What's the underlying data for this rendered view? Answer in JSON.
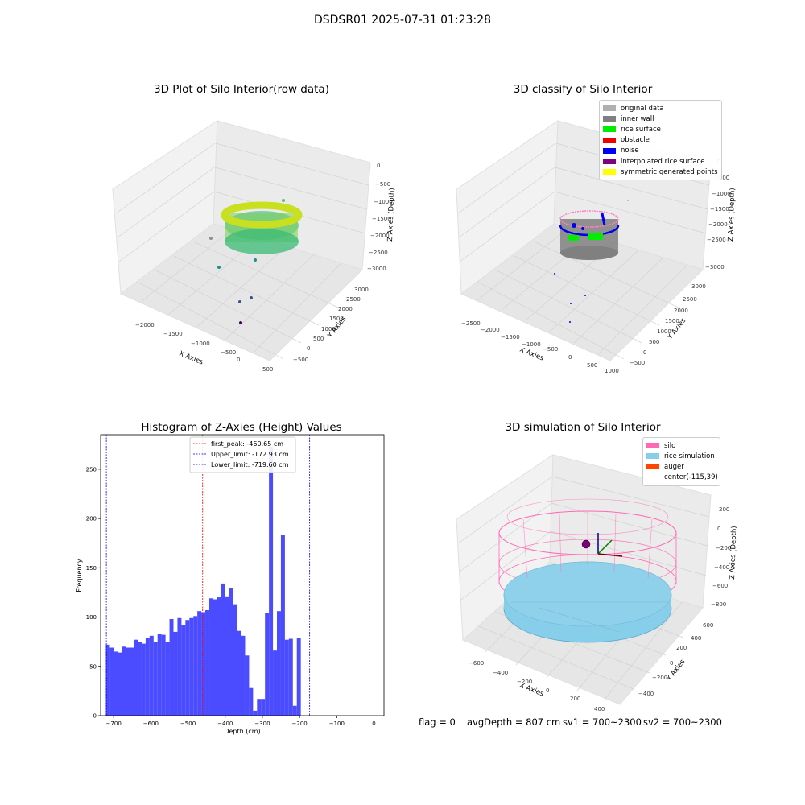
{
  "figure": {
    "suptitle": "DSDSR01 2025-07-31 01:23:28",
    "footer": {
      "flag": "flag = 0",
      "avg_depth": "avgDepth = 807 cm",
      "sv1": "sv1 = 700~2300",
      "sv2": "sv2 = 700~2300"
    }
  },
  "panels": {
    "raw": {
      "title": "3D Plot of Silo Interior(row data)",
      "xlabel": "X Axies",
      "ylabel": "Y Axies",
      "zlabel": "Z Axies (Depth)",
      "xticks": [
        "−2000",
        "−1500",
        "−1000",
        "−500",
        "0",
        "500"
      ],
      "yticks": [
        "−500",
        "0",
        "500",
        "1000",
        "1500",
        "2000",
        "2500",
        "3000"
      ],
      "zticks": [
        "0",
        "−500",
        "−1000",
        "−1500",
        "−2000",
        "−2500",
        "−3000"
      ]
    },
    "classify": {
      "title": "3D classify of Silo Interior",
      "xlabel": "X Axies",
      "ylabel": "Y Axies",
      "zlabel": "Z Axies (Depth)",
      "xticks": [
        "−2500",
        "−2000",
        "−1500",
        "−1000",
        "−500",
        "0",
        "500",
        "1000"
      ],
      "yticks": [
        "−500",
        "0",
        "500",
        "1000",
        "1500",
        "2000",
        "2500",
        "3000"
      ],
      "zticks": [
        "0",
        "−500",
        "−1000",
        "−1500",
        "−2000",
        "−2500",
        "−3000"
      ],
      "legend": [
        {
          "label": "original data",
          "color": "#b0b0b0"
        },
        {
          "label": "inner wall",
          "color": "#808080"
        },
        {
          "label": "rice surface",
          "color": "#00ee00"
        },
        {
          "label": "obstacle",
          "color": "#ee0000"
        },
        {
          "label": "noise",
          "color": "#0000ee"
        },
        {
          "label": "interpolated rice surface",
          "color": "#800080"
        },
        {
          "label": "symmetric generated points",
          "color": "#ffff00"
        }
      ]
    },
    "simulation": {
      "title": "3D simulation of Silo Interior",
      "xlabel": "X Axies",
      "ylabel": "Y Axies",
      "zlabel": "Z Axies (Depth)",
      "xticks": [
        "−600",
        "−400",
        "−200",
        "0",
        "200",
        "400"
      ],
      "yticks": [
        "−400",
        "−200",
        "0",
        "200",
        "400",
        "600"
      ],
      "zticks": [
        "200",
        "0",
        "−200",
        "−400",
        "−600",
        "−800"
      ],
      "legend": [
        {
          "label": "silo",
          "color": "#ff69b4"
        },
        {
          "label": "rice simulation",
          "color": "#87ceeb"
        },
        {
          "label": "auger",
          "color": "#ff4500"
        },
        {
          "label": "center(-115,39)",
          "color": null
        }
      ]
    }
  },
  "chart_data": [
    {
      "type": "scatter",
      "title": "3D Plot of Silo Interior(row data)",
      "xlabel": "X Axies",
      "ylabel": "Y Axies",
      "zlabel": "Z Axies (Depth)",
      "xlim": [
        -2200,
        600
      ],
      "ylim": [
        -600,
        3200
      ],
      "zlim": [
        -3200,
        100
      ],
      "colormap": "viridis"
    },
    {
      "type": "scatter",
      "title": "3D classify of Silo Interior",
      "xlabel": "X Axies",
      "ylabel": "Y Axies",
      "zlabel": "Z Axies (Depth)",
      "xlim": [
        -2700,
        1100
      ],
      "ylim": [
        -600,
        3200
      ],
      "zlim": [
        -3200,
        100
      ],
      "series": [
        {
          "name": "original data",
          "color": "#b0b0b0"
        },
        {
          "name": "inner wall",
          "color": "#808080"
        },
        {
          "name": "rice surface",
          "color": "#00ee00"
        },
        {
          "name": "obstacle",
          "color": "#ee0000"
        },
        {
          "name": "noise",
          "color": "#0000ee"
        },
        {
          "name": "interpolated rice surface",
          "color": "#800080"
        },
        {
          "name": "symmetric generated points",
          "color": "#ffff00"
        }
      ]
    },
    {
      "type": "bar",
      "title": "Histogram of Z-Axies (Height) Values",
      "xlabel": "Depth (cm)",
      "ylabel": "Frequency",
      "xlim": [
        -735,
        27
      ],
      "ylim": [
        0,
        285
      ],
      "xticks": [
        -700,
        -600,
        -500,
        -400,
        -300,
        -200,
        -100,
        0
      ],
      "xtick_labels": [
        "−700",
        "−600",
        "−500",
        "−400",
        "−300",
        "−200",
        "−100",
        "0"
      ],
      "yticks": [
        0,
        50,
        100,
        150,
        200,
        250
      ],
      "bar_color": "#4b4bff",
      "bin_start": -721,
      "bin_width": 10.7,
      "values": [
        72,
        69,
        65,
        64,
        70,
        69,
        69,
        77,
        75,
        73,
        79,
        81,
        75,
        83,
        82,
        75,
        98,
        85,
        99,
        92,
        97,
        99,
        101,
        106,
        105,
        107,
        119,
        118,
        120,
        134,
        121,
        129,
        113,
        86,
        81,
        61,
        28,
        5,
        17,
        17,
        104,
        273,
        66,
        106,
        183,
        77,
        78,
        10,
        79
      ],
      "vlines": [
        {
          "x": -460.65,
          "label": "first_peak: -460.65 cm",
          "color": "#ff0000"
        },
        {
          "x": -172.93,
          "label": "Upper_limit: -172.93 cm",
          "color": "#0000ff"
        },
        {
          "x": -719.6,
          "label": "Lower_limit: -719.60 cm",
          "color": "#0000ff"
        }
      ],
      "legend_position": "upper-center"
    },
    {
      "type": "scatter",
      "title": "3D simulation of Silo Interior",
      "xlabel": "X Axies",
      "ylabel": "Y Axies",
      "zlabel": "Z Axies (Depth)",
      "xlim": [
        -700,
        450
      ],
      "ylim": [
        -450,
        650
      ],
      "zlim": [
        -900,
        300
      ],
      "series": [
        {
          "name": "silo",
          "color": "#ff69b4"
        },
        {
          "name": "rice simulation",
          "color": "#87ceeb"
        },
        {
          "name": "auger",
          "color": "#ff4500"
        },
        {
          "name": "center(-115,39)"
        }
      ]
    }
  ]
}
